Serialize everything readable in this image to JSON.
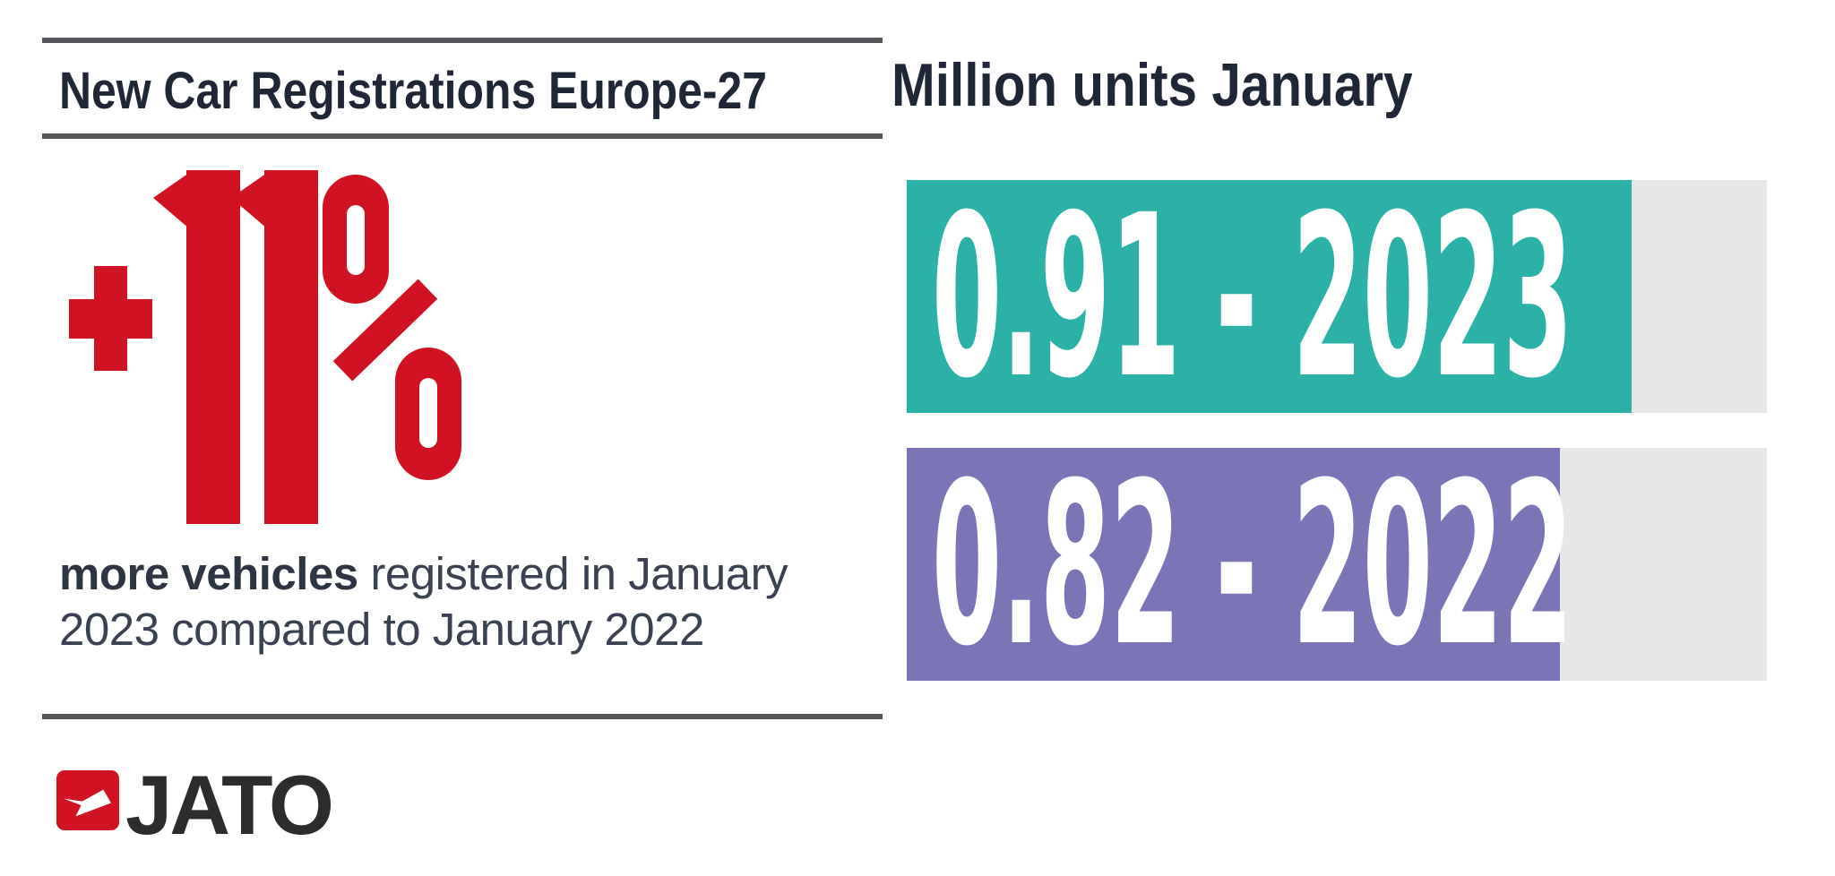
{
  "header": {
    "title": "New Car Registrations Europe-27"
  },
  "highlight": {
    "value": "+11%",
    "color": "#D01222",
    "description_bold": "more vehicles",
    "description_rest": " registered in January 2023 compared to January 2022"
  },
  "chart_data": {
    "type": "bar",
    "orientation": "horizontal",
    "title": "Million units January",
    "unit": "million units",
    "categories": [
      "2023",
      "2022"
    ],
    "values": [
      0.91,
      0.82
    ],
    "bar_labels": [
      "0.91 - 2023",
      "0.82 - 2022"
    ],
    "series_colors": [
      "#2BB1A8",
      "#7A75B6"
    ],
    "track_color": "#E9E6E7",
    "label_color": "#FFFFFF",
    "xlim": [
      0,
      1.08
    ],
    "grid": false,
    "legend": false,
    "value_label_position": "inside-left"
  },
  "logo": {
    "text": "JATO",
    "icon": "jato-arrow-icon",
    "color": "#D01222"
  }
}
